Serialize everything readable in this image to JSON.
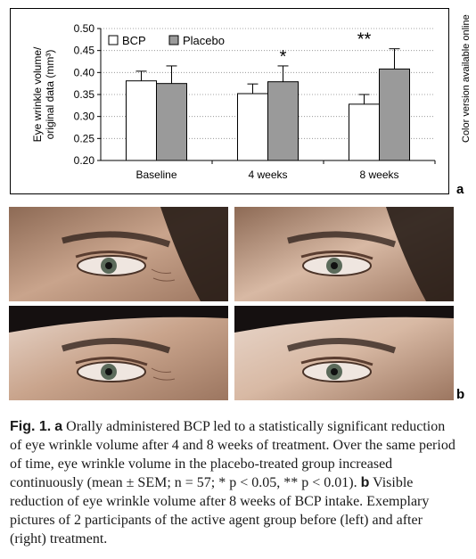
{
  "chart_data": {
    "type": "bar",
    "ylabel_line1": "Eye wrinkle volume/",
    "ylabel_line2": "original data (mm³)",
    "ylim": [
      0.2,
      0.5
    ],
    "yticks": [
      "0.20",
      "0.25",
      "0.30",
      "0.35",
      "0.40",
      "0.45",
      "0.50"
    ],
    "grid": "horizontal-dotted",
    "legend_position": "top-left",
    "categories": [
      "Baseline",
      "4 weeks",
      "8 weeks"
    ],
    "series": [
      {
        "name": "BCP",
        "color": "#ffffff",
        "values": [
          0.381,
          0.352,
          0.328
        ],
        "errors": [
          0.022,
          0.022,
          0.022
        ]
      },
      {
        "name": "Placebo",
        "color": "#9a9a9a",
        "values": [
          0.375,
          0.379,
          0.408
        ],
        "errors": [
          0.04,
          0.036,
          0.046
        ]
      }
    ],
    "annotations": [
      {
        "category": "4 weeks",
        "text": "*"
      },
      {
        "category": "8 weeks",
        "text": "**"
      }
    ]
  },
  "side_note": "Color version available online",
  "panel_a": "a",
  "panel_b": "b",
  "caption": {
    "fig_label": "Fig. 1.",
    "a_label": "a",
    "a_text": " Orally administered BCP led to a statistically significant reduction of eye wrinkle volume after 4 and 8 weeks of treatment. Over the same period of time, eye wrinkle volume in the placebo-treated group increased continuously (mean ± SEM; n = 57; * p < 0.05, ** p < 0.01). ",
    "b_label": "b",
    "b_text": " Visible reduction of eye wrinkle volume after 8 weeks of BCP intake. Exemplary pictures of 2 participants of the active agent group before (left) and after (right) treatment."
  },
  "colors": {
    "skin": "#c9a48c",
    "hair": "#2b1e18",
    "frame": "#000000"
  }
}
